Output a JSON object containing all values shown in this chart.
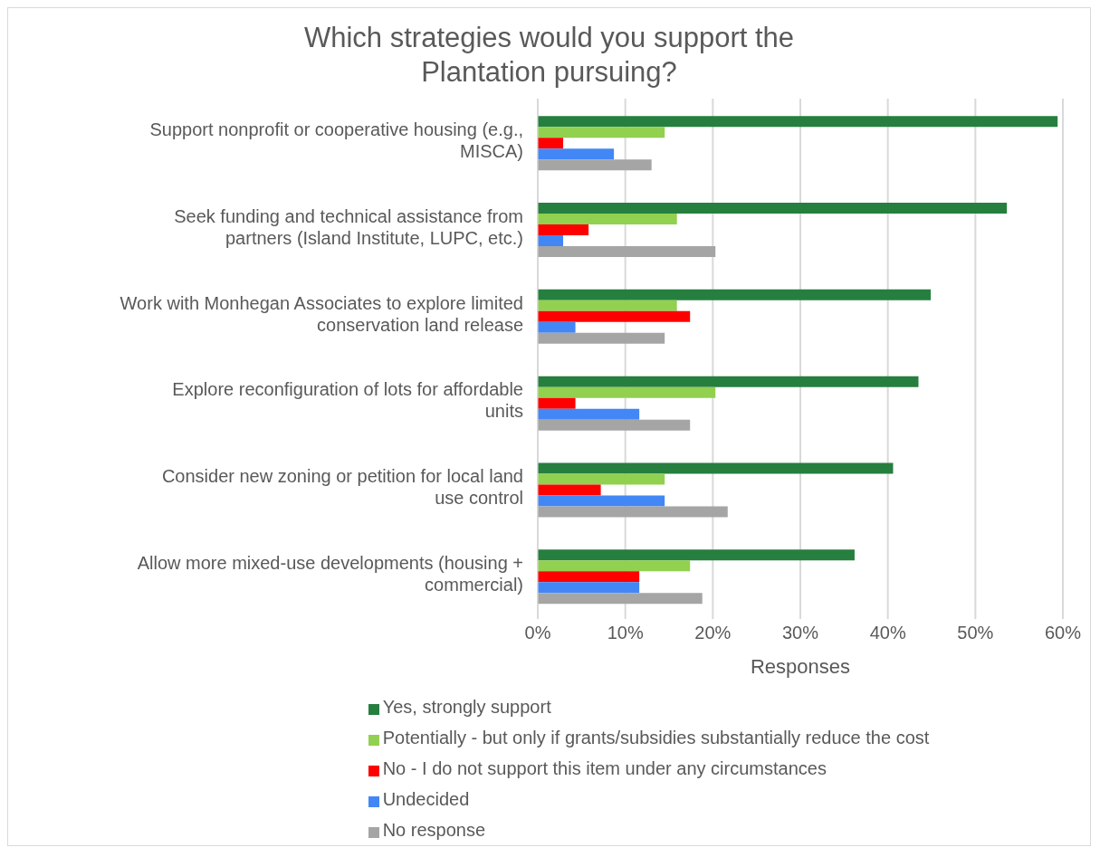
{
  "chart_data": {
    "type": "bar",
    "orientation": "horizontal",
    "title": "Which strategies would you support the Plantation pursuing?",
    "xlabel": "Responses",
    "categories": [
      "Support nonprofit or cooperative housing (e.g., MISCA)",
      "Seek funding and technical assistance from partners (Island Institute, LUPC, etc.)",
      "Work with Monhegan Associates to explore limited conservation land release",
      "Explore reconfiguration of lots for affordable units",
      "Consider new zoning or petition for local land use control",
      "Allow more mixed-use developments (housing + commercial)"
    ],
    "series": [
      {
        "name": "Yes, strongly support",
        "color": "#267f3f",
        "values": [
          59.4,
          53.6,
          44.9,
          43.5,
          40.6,
          36.2
        ]
      },
      {
        "name": "Potentially - but only if grants/subsidies substantially reduce the cost",
        "color": "#92d050",
        "values": [
          14.5,
          15.9,
          15.9,
          20.3,
          14.5,
          17.4
        ]
      },
      {
        "name": "No - I do not support this item under any circumstances",
        "color": "#ff0000",
        "values": [
          2.9,
          5.8,
          17.4,
          4.3,
          7.2,
          11.6
        ]
      },
      {
        "name": "Undecided",
        "color": "#4287f5",
        "values": [
          8.7,
          2.9,
          4.3,
          11.6,
          14.5,
          11.6
        ]
      },
      {
        "name": "No response",
        "color": "#a5a5a5",
        "values": [
          13.0,
          20.3,
          14.5,
          17.4,
          21.7,
          18.8
        ]
      }
    ],
    "xlim": [
      0,
      60
    ],
    "xticks": [
      {
        "value": 0,
        "label": "0%"
      },
      {
        "value": 10,
        "label": "10%"
      },
      {
        "value": 20,
        "label": "20%"
      },
      {
        "value": 30,
        "label": "30%"
      },
      {
        "value": 40,
        "label": "40%"
      },
      {
        "value": 50,
        "label": "50%"
      },
      {
        "value": 60,
        "label": "60%"
      }
    ],
    "grid": "x",
    "legend": "bottom"
  }
}
